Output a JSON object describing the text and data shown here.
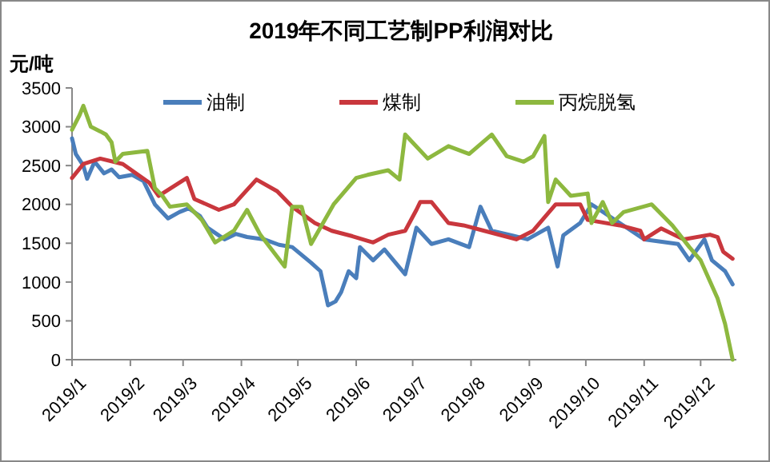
{
  "chart_data": {
    "type": "line",
    "title": "2019年不同工艺制PP利润对比",
    "ylabel": "元/吨",
    "legend": "top",
    "grid": false,
    "marker": "none",
    "line_style": "solid",
    "xlim": [
      "2019-01-01",
      "2019-12-20"
    ],
    "xticks": [
      {
        "value": "2019-01-01",
        "label": "2019/1"
      },
      {
        "value": "2019-02-01",
        "label": "2019/2"
      },
      {
        "value": "2019-03-01",
        "label": "2019/3"
      },
      {
        "value": "2019-04-01",
        "label": "2019/4"
      },
      {
        "value": "2019-05-01",
        "label": "2019/5"
      },
      {
        "value": "2019-06-01",
        "label": "2019/6"
      },
      {
        "value": "2019-07-01",
        "label": "2019/7"
      },
      {
        "value": "2019-08-01",
        "label": "2019/8"
      },
      {
        "value": "2019-09-01",
        "label": "2019/9"
      },
      {
        "value": "2019-10-01",
        "label": "2019/10"
      },
      {
        "value": "2019-11-01",
        "label": "2019/11"
      },
      {
        "value": "2019-12-01",
        "label": "2019/12"
      }
    ],
    "ylim": [
      0,
      3500
    ],
    "yticks": [
      0,
      500,
      1000,
      1500,
      2000,
      2500,
      3000,
      3500
    ],
    "series": [
      {
        "name": "油制",
        "color": "#4a7ebb",
        "x": [
          "2019-01-01",
          "2019-01-03",
          "2019-01-07",
          "2019-01-09",
          "2019-01-13",
          "2019-01-18",
          "2019-01-22",
          "2019-01-26",
          "2019-02-02",
          "2019-02-08",
          "2019-02-14",
          "2019-02-21",
          "2019-02-27",
          "2019-03-04",
          "2019-03-10",
          "2019-03-14",
          "2019-03-23",
          "2019-03-29",
          "2019-04-04",
          "2019-04-13",
          "2019-04-21",
          "2019-04-28",
          "2019-05-08",
          "2019-05-13",
          "2019-05-17",
          "2019-05-21",
          "2019-05-24",
          "2019-05-28",
          "2019-06-01",
          "2019-06-03",
          "2019-06-10",
          "2019-06-16",
          "2019-06-27",
          "2019-07-03",
          "2019-07-11",
          "2019-07-20",
          "2019-07-31",
          "2019-08-06",
          "2019-08-12",
          "2019-08-23",
          "2019-08-31",
          "2019-09-11",
          "2019-09-16",
          "2019-09-19",
          "2019-09-28",
          "2019-10-04",
          "2019-10-19",
          "2019-11-01",
          "2019-11-19",
          "2019-11-25",
          "2019-12-03",
          "2019-12-07",
          "2019-12-14",
          "2019-12-18"
        ],
        "values": [
          2850,
          2650,
          2500,
          2330,
          2550,
          2400,
          2450,
          2350,
          2380,
          2300,
          2000,
          1820,
          1900,
          1950,
          1850,
          1700,
          1550,
          1620,
          1580,
          1550,
          1480,
          1450,
          1250,
          1140,
          700,
          750,
          870,
          1140,
          1050,
          1450,
          1280,
          1420,
          1100,
          1700,
          1490,
          1550,
          1450,
          1970,
          1660,
          1600,
          1550,
          1700,
          1200,
          1600,
          1760,
          2000,
          1760,
          1550,
          1490,
          1280,
          1550,
          1280,
          1140,
          970
        ]
      },
      {
        "name": "煤制",
        "color": "#c9373d",
        "x": [
          "2019-01-01",
          "2019-01-07",
          "2019-01-16",
          "2019-01-28",
          "2019-02-11",
          "2019-02-16",
          "2019-03-03",
          "2019-03-07",
          "2019-03-20",
          "2019-03-28",
          "2019-04-09",
          "2019-04-20",
          "2019-04-28",
          "2019-05-10",
          "2019-05-19",
          "2019-05-30",
          "2019-06-10",
          "2019-06-18",
          "2019-06-27",
          "2019-07-03",
          "2019-07-05",
          "2019-07-11",
          "2019-07-20",
          "2019-07-28",
          "2019-08-08",
          "2019-08-25",
          "2019-09-03",
          "2019-09-15",
          "2019-09-28",
          "2019-10-02",
          "2019-10-19",
          "2019-10-30",
          "2019-11-01",
          "2019-11-10",
          "2019-11-22",
          "2019-12-06",
          "2019-12-10",
          "2019-12-13",
          "2019-12-18"
        ],
        "values": [
          2340,
          2520,
          2590,
          2520,
          2280,
          2110,
          2340,
          2070,
          1930,
          2000,
          2320,
          2170,
          1970,
          1760,
          1660,
          1590,
          1510,
          1610,
          1660,
          1930,
          2030,
          2030,
          1760,
          1730,
          1660,
          1550,
          1660,
          2000,
          2000,
          1800,
          1730,
          1660,
          1550,
          1690,
          1550,
          1610,
          1580,
          1390,
          1300
        ]
      },
      {
        "name": "丙烷脱氢",
        "color": "#8db83f",
        "x": [
          "2019-01-01",
          "2019-01-05",
          "2019-01-07",
          "2019-01-11",
          "2019-01-16",
          "2019-01-19",
          "2019-01-22",
          "2019-01-24",
          "2019-01-28",
          "2019-02-10",
          "2019-02-14",
          "2019-02-18",
          "2019-02-22",
          "2019-03-03",
          "2019-03-11",
          "2019-03-18",
          "2019-03-28",
          "2019-04-04",
          "2019-04-11",
          "2019-04-24",
          "2019-04-28",
          "2019-05-03",
          "2019-05-08",
          "2019-05-20",
          "2019-06-01",
          "2019-06-07",
          "2019-06-18",
          "2019-06-24",
          "2019-06-27",
          "2019-07-09",
          "2019-07-20",
          "2019-07-31",
          "2019-08-12",
          "2019-08-20",
          "2019-08-29",
          "2019-09-03",
          "2019-09-09",
          "2019-09-11",
          "2019-09-15",
          "2019-09-23",
          "2019-10-02",
          "2019-10-04",
          "2019-10-10",
          "2019-10-15",
          "2019-10-21",
          "2019-11-05",
          "2019-11-16",
          "2019-11-25",
          "2019-12-01",
          "2019-12-10",
          "2019-12-14",
          "2019-12-18"
        ],
        "values": [
          2960,
          3150,
          3270,
          3000,
          2940,
          2900,
          2800,
          2550,
          2650,
          2690,
          2210,
          2110,
          1970,
          2000,
          1800,
          1510,
          1660,
          1930,
          1610,
          1200,
          1970,
          1970,
          1490,
          2000,
          2340,
          2380,
          2440,
          2320,
          2900,
          2590,
          2750,
          2650,
          2900,
          2620,
          2550,
          2620,
          2880,
          2030,
          2320,
          2110,
          2140,
          1760,
          2030,
          1760,
          1900,
          2000,
          1730,
          1450,
          1280,
          790,
          460,
          0
        ]
      }
    ]
  }
}
